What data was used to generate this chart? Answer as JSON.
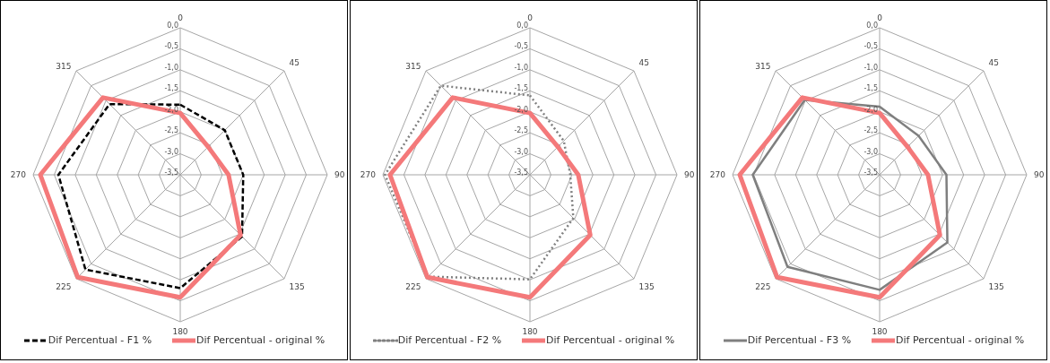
{
  "chart_data": [
    {
      "type": "radar",
      "categories": [
        "0",
        "45",
        "90",
        "135",
        "180",
        "225",
        "270",
        "315"
      ],
      "series": [
        {
          "name": "Dif Percentual - F1 %",
          "color": "#000000",
          "line_style": "dashed",
          "values": [
            -1.83,
            -2.0,
            -2.0,
            -1.42,
            -0.8,
            -0.31,
            -0.6,
            -1.12
          ]
        },
        {
          "name": "Dif Percentual - original %",
          "color": "#f4797a",
          "line_style": "solid",
          "values": [
            -2.03,
            -2.56,
            -2.35,
            -1.47,
            -0.58,
            -0.05,
            -0.17,
            -0.9
          ]
        }
      ],
      "ylim": [
        -3.5,
        0
      ],
      "yticks": [
        {
          "value": 0,
          "label": "0,0"
        },
        {
          "value": -0.5,
          "label": "-0,5"
        },
        {
          "value": -1,
          "label": "-1,0"
        },
        {
          "value": -1.5,
          "label": "-1,5"
        },
        {
          "value": -2,
          "label": "-2,0"
        },
        {
          "value": -2.5,
          "label": "-2,5"
        },
        {
          "value": -3,
          "label": "-3,0"
        },
        {
          "value": -3.5,
          "label": "-3,5"
        }
      ],
      "grid": true,
      "legend": "bottom",
      "marker": "none"
    },
    {
      "type": "radar",
      "categories": [
        "0",
        "45",
        "90",
        "135",
        "180",
        "225",
        "270",
        "315"
      ],
      "series": [
        {
          "name": "Dif Percentual - F2 %",
          "color": "#808080",
          "line_style": "dotted",
          "values": [
            -1.61,
            -2.36,
            -2.54,
            -2.04,
            -1.01,
            -0.07,
            -0.05,
            -0.5
          ]
        },
        {
          "name": "Dif Percentual - original %",
          "color": "#f4797a",
          "line_style": "solid",
          "values": [
            -2.03,
            -2.56,
            -2.35,
            -1.47,
            -0.58,
            -0.05,
            -0.17,
            -0.9
          ]
        }
      ],
      "ylim": [
        -3.5,
        0
      ],
      "yticks": [
        {
          "value": 0,
          "label": "0,0"
        },
        {
          "value": -0.5,
          "label": "-0,5"
        },
        {
          "value": -1,
          "label": "-1,0"
        },
        {
          "value": -1.5,
          "label": "-1,5"
        },
        {
          "value": -2,
          "label": "-2,0"
        },
        {
          "value": -2.5,
          "label": "-2,5"
        },
        {
          "value": -3,
          "label": "-3,0"
        },
        {
          "value": -3.5,
          "label": "-3,5"
        }
      ],
      "grid": true,
      "legend": "bottom",
      "marker": "none"
    },
    {
      "type": "radar",
      "categories": [
        "0",
        "45",
        "90",
        "135",
        "180",
        "225",
        "270",
        "315"
      ],
      "series": [
        {
          "name": "Dif Percentual - F3 %",
          "color": "#7f7f7f",
          "line_style": "solid",
          "values": [
            -1.88,
            -2.19,
            -1.91,
            -1.22,
            -0.76,
            -0.4,
            -0.48,
            -0.98
          ]
        },
        {
          "name": "Dif Percentual - original %",
          "color": "#f4797a",
          "line_style": "solid",
          "values": [
            -2.03,
            -2.56,
            -2.35,
            -1.47,
            -0.58,
            -0.05,
            -0.17,
            -0.9
          ]
        }
      ],
      "ylim": [
        -3.5,
        0
      ],
      "yticks": [
        {
          "value": 0,
          "label": "0,0"
        },
        {
          "value": -0.5,
          "label": "-0,5"
        },
        {
          "value": -1,
          "label": "-1,0"
        },
        {
          "value": -1.5,
          "label": "-1,5"
        },
        {
          "value": -2,
          "label": "-2,0"
        },
        {
          "value": -2.5,
          "label": "-2,5"
        },
        {
          "value": -3,
          "label": "-3,0"
        },
        {
          "value": -3.5,
          "label": "-3,5"
        }
      ],
      "grid": true,
      "legend": "bottom",
      "marker": "none"
    }
  ]
}
